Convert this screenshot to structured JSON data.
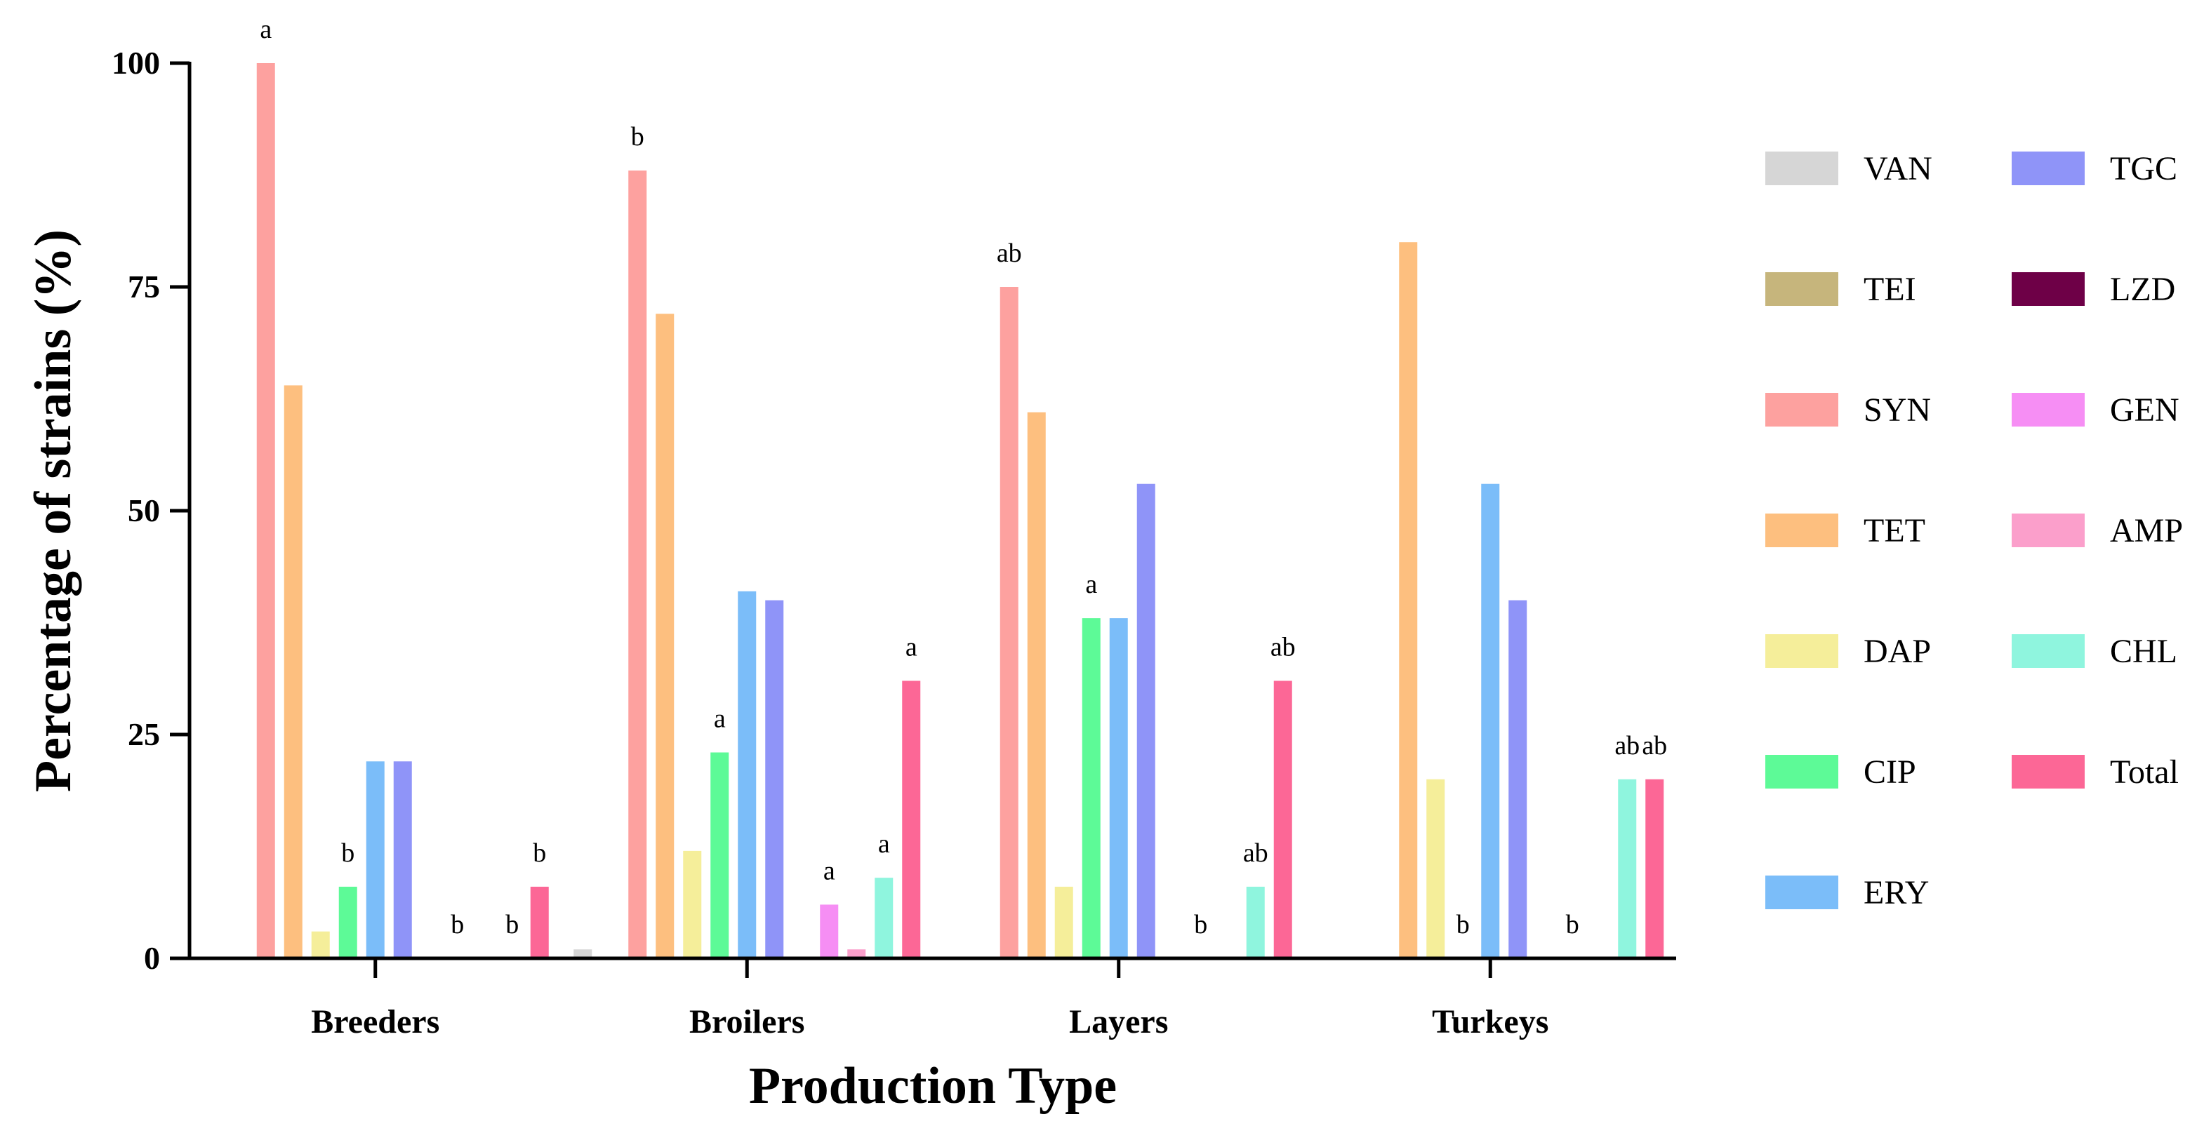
{
  "chart_data": {
    "type": "bar",
    "xlabel": "Production Type",
    "ylabel": "Percentage of strains (%)",
    "ylim": [
      0,
      100
    ],
    "yticks": [
      0,
      25,
      50,
      75,
      100
    ],
    "grid": false,
    "legend_position": "right",
    "categories": [
      "Breeders",
      "Broilers",
      "Layers",
      "Turkeys"
    ],
    "series": [
      {
        "name": "VAN",
        "color": "#d6d6d6",
        "values": [
          0,
          1,
          0,
          0
        ]
      },
      {
        "name": "TEI",
        "color": "#c6b57c",
        "values": [
          0,
          0,
          0,
          0
        ]
      },
      {
        "name": "SYN",
        "color": "#fda19f",
        "values": [
          100,
          88,
          75,
          0
        ]
      },
      {
        "name": "TET",
        "color": "#fdbf7f",
        "values": [
          64,
          72,
          61,
          80
        ]
      },
      {
        "name": "DAP",
        "color": "#f5ee9a",
        "values": [
          3,
          12,
          8,
          20
        ]
      },
      {
        "name": "CIP",
        "color": "#5dfa97",
        "values": [
          8,
          23,
          38,
          0
        ]
      },
      {
        "name": "ERY",
        "color": "#7bbdf9",
        "values": [
          22,
          41,
          38,
          53
        ]
      },
      {
        "name": "TGC",
        "color": "#8f94f8",
        "values": [
          22,
          40,
          53,
          40
        ]
      },
      {
        "name": "LZD",
        "color": "#6e0047",
        "values": [
          0,
          0,
          0,
          0
        ]
      },
      {
        "name": "GEN",
        "color": "#f68ef4",
        "values": [
          0,
          6,
          0,
          0
        ]
      },
      {
        "name": "AMP",
        "color": "#fb9fcb",
        "values": [
          0,
          1,
          0,
          0
        ]
      },
      {
        "name": "CHL",
        "color": "#8ff5de",
        "values": [
          0,
          9,
          8,
          20
        ]
      },
      {
        "name": "Total",
        "color": "#fc6796",
        "values": [
          8,
          31,
          31,
          20
        ]
      }
    ],
    "annotations": [
      {
        "category": "Breeders",
        "series": "SYN",
        "text": "a"
      },
      {
        "category": "Breeders",
        "series": "CIP",
        "text": "b"
      },
      {
        "category": "Breeders",
        "series": "GEN",
        "text": "b"
      },
      {
        "category": "Breeders",
        "series": "CHL",
        "text": "b"
      },
      {
        "category": "Breeders",
        "series": "Total",
        "text": "b"
      },
      {
        "category": "Broilers",
        "series": "SYN",
        "text": "b"
      },
      {
        "category": "Broilers",
        "series": "CIP",
        "text": "a"
      },
      {
        "category": "Broilers",
        "series": "GEN",
        "text": "a"
      },
      {
        "category": "Broilers",
        "series": "CHL",
        "text": "a"
      },
      {
        "category": "Broilers",
        "series": "Total",
        "text": "a"
      },
      {
        "category": "Layers",
        "series": "SYN",
        "text": "ab"
      },
      {
        "category": "Layers",
        "series": "CIP",
        "text": "a"
      },
      {
        "category": "Layers",
        "series": "GEN",
        "text": "b"
      },
      {
        "category": "Layers",
        "series": "CHL",
        "text": "ab"
      },
      {
        "category": "Layers",
        "series": "Total",
        "text": "ab"
      },
      {
        "category": "Turkeys",
        "series": "CIP",
        "text": "b"
      },
      {
        "category": "Turkeys",
        "series": "GEN",
        "text": "b"
      },
      {
        "category": "Turkeys",
        "series": "CHL",
        "text": "ab"
      },
      {
        "category": "Turkeys",
        "series": "Total",
        "text": "ab"
      }
    ]
  }
}
